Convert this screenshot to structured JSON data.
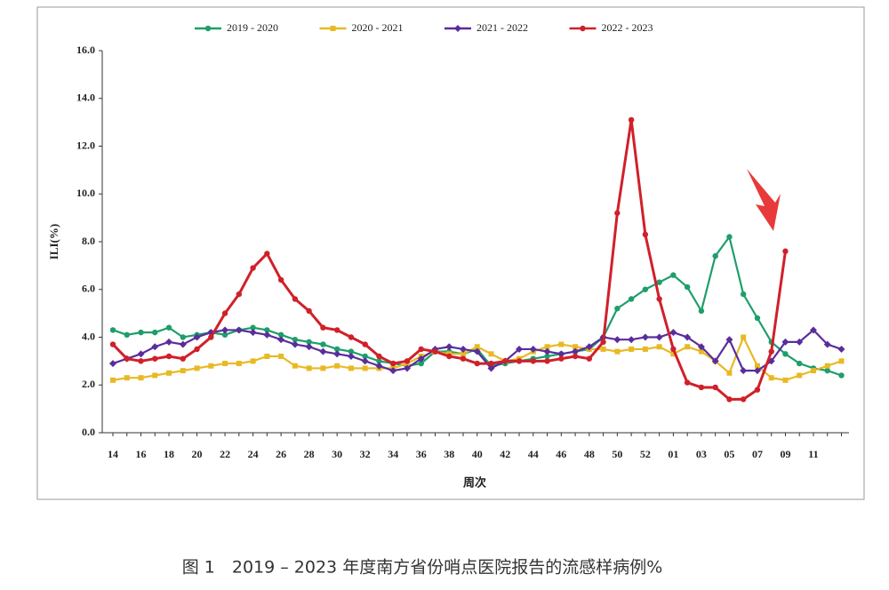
{
  "chart_data": {
    "type": "line",
    "y_label": "ILI(%)",
    "x_label": "周次",
    "caption": "图 1　2019 – 2023 年度南方省份哨点医院报告的流感样病例%",
    "categories": [
      "14",
      null,
      "16",
      null,
      "18",
      null,
      "20",
      null,
      "22",
      null,
      "24",
      null,
      "26",
      null,
      "28",
      null,
      "30",
      null,
      "32",
      null,
      "34",
      null,
      "36",
      null,
      "38",
      null,
      "40",
      null,
      "42",
      null,
      "44",
      null,
      "46",
      null,
      "48",
      null,
      "50",
      null,
      "52",
      null,
      "01",
      null,
      "03",
      null,
      "05",
      null,
      "07",
      null,
      "09",
      null,
      "11",
      null,
      null
    ],
    "ylim": [
      0,
      16
    ],
    "yticks": [
      {
        "value": 0,
        "label": "0.0"
      },
      {
        "value": 2,
        "label": "2.0"
      },
      {
        "value": 4,
        "label": "4.0"
      },
      {
        "value": 6,
        "label": "6.0"
      },
      {
        "value": 8,
        "label": "8.0"
      },
      {
        "value": 10,
        "label": "10.0"
      },
      {
        "value": 12,
        "label": "12.0"
      },
      {
        "value": 14,
        "label": "14.0"
      },
      {
        "value": 16,
        "label": "16.0"
      }
    ],
    "grid": false,
    "series": [
      {
        "name": "2019 - 2020",
        "color": "#1e9e6a",
        "marker": "circle",
        "values": [
          4.3,
          4.1,
          4.2,
          4.2,
          4.4,
          4.0,
          4.1,
          4.2,
          4.1,
          4.3,
          4.4,
          4.3,
          4.1,
          3.9,
          3.8,
          3.7,
          3.5,
          3.4,
          3.2,
          3.0,
          2.9,
          2.8,
          2.9,
          3.4,
          3.4,
          3.3,
          3.5,
          2.8,
          2.9,
          3.0,
          3.1,
          3.2,
          3.3,
          3.4,
          3.5,
          4.0,
          5.2,
          5.6,
          6.0,
          6.3,
          6.6,
          6.1,
          5.1,
          7.4,
          8.2,
          5.8,
          4.8,
          3.8,
          3.3,
          2.9,
          2.7,
          2.6,
          2.4
        ]
      },
      {
        "name": "2020 - 2021",
        "color": "#e8b923",
        "marker": "square",
        "values": [
          2.2,
          2.3,
          2.3,
          2.4,
          2.5,
          2.6,
          2.7,
          2.8,
          2.9,
          2.9,
          3.0,
          3.2,
          3.2,
          2.8,
          2.7,
          2.7,
          2.8,
          2.7,
          2.7,
          2.7,
          2.7,
          2.9,
          3.2,
          3.4,
          3.3,
          3.3,
          3.6,
          3.3,
          3.0,
          3.1,
          3.4,
          3.6,
          3.7,
          3.6,
          3.5,
          3.5,
          3.4,
          3.5,
          3.5,
          3.6,
          3.3,
          3.6,
          3.4,
          3.0,
          2.5,
          4.0,
          2.8,
          2.3,
          2.2,
          2.4,
          2.6,
          2.8,
          3.0
        ]
      },
      {
        "name": "2021 - 2022",
        "color": "#5b2d9c",
        "marker": "diamond",
        "values": [
          2.9,
          3.1,
          3.3,
          3.6,
          3.8,
          3.7,
          4.0,
          4.2,
          4.3,
          4.3,
          4.2,
          4.1,
          3.9,
          3.7,
          3.6,
          3.4,
          3.3,
          3.2,
          3.0,
          2.8,
          2.6,
          2.7,
          3.1,
          3.5,
          3.6,
          3.5,
          3.4,
          2.7,
          3.0,
          3.5,
          3.5,
          3.4,
          3.3,
          3.4,
          3.6,
          4.0,
          3.9,
          3.9,
          4.0,
          4.0,
          4.2,
          4.0,
          3.6,
          3.0,
          3.9,
          2.6,
          2.6,
          3.0,
          3.8,
          3.8,
          4.3,
          3.7,
          3.5
        ]
      },
      {
        "name": "2022 - 2023",
        "color": "#d0202a",
        "marker": "circle",
        "values": [
          3.7,
          3.1,
          3.0,
          3.1,
          3.2,
          3.1,
          3.5,
          4.0,
          5.0,
          5.8,
          6.9,
          7.5,
          6.4,
          5.6,
          5.1,
          4.4,
          4.3,
          4.0,
          3.7,
          3.2,
          2.9,
          3.0,
          3.5,
          3.4,
          3.2,
          3.1,
          2.9,
          2.9,
          3.0,
          3.0,
          3.0,
          3.0,
          3.1,
          3.2,
          3.1,
          3.8,
          9.2,
          13.1,
          8.3,
          5.6,
          3.5,
          2.1,
          1.9,
          1.9,
          1.4,
          1.4,
          1.8,
          3.4,
          7.6,
          null,
          null,
          null,
          null
        ]
      }
    ]
  }
}
